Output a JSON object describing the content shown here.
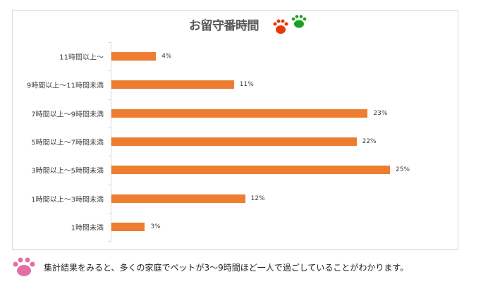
{
  "chart_data": {
    "type": "bar",
    "orientation": "horizontal",
    "title": "お留守番時間",
    "categories": [
      "11時間以上～",
      "9時間以上～11時間未満",
      "7時間以上～9時間未満",
      "5時間以上～7時間未満",
      "3時間以上～5時間未満",
      "1時間以上～3時間未満",
      "1時間未満"
    ],
    "values": [
      4,
      11,
      23,
      22,
      25,
      12,
      3
    ],
    "data_labels": [
      "4%",
      "11%",
      "23%",
      "22%",
      "25%",
      "12%",
      "3%"
    ],
    "unit": "%",
    "bar_color": "#ed7d31",
    "grid": false,
    "legend": "none"
  },
  "icons": {
    "title_paws": [
      "paw-icon-red #e8380d",
      "paw-icon-green #1aa020"
    ],
    "note_paw": "paw-icon-pink #e46fa5"
  },
  "note": "集計結果をみると、多くの家庭でペットが3～9時間ほど一人で過ごしていることがわかります。"
}
